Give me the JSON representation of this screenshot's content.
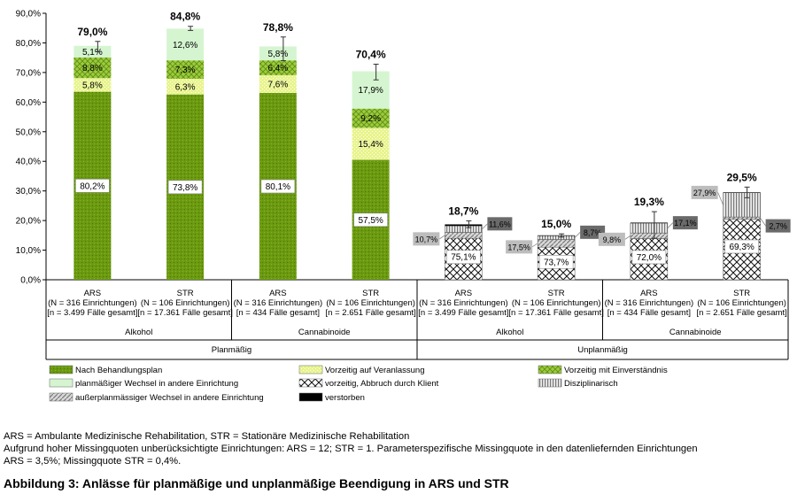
{
  "chart_data": {
    "type": "stacked_bar",
    "y_axis": {
      "min": 0,
      "max": 90,
      "tick_step": 10,
      "tick_labels": [
        "0,0%",
        "10,0%",
        "20,0%",
        "30,0%",
        "40,0%",
        "50,0%",
        "60,0%",
        "70,0%",
        "80,0%",
        "90,0%"
      ]
    },
    "categories": [
      {
        "id": "c1",
        "setting": "ARS",
        "n_inst": "(N = 316 Einrichtungen)",
        "n_cases": "[n = 3.499 Fälle gesamt]",
        "substance": "Alkohol",
        "type": "Planmäßig",
        "total": 79.0,
        "total_label": "79,0%"
      },
      {
        "id": "c2",
        "setting": "STR",
        "n_inst": "(N = 106 Einrichtungen)",
        "n_cases": "[n = 17.361 Fälle gesamt]",
        "substance": "Alkohol",
        "type": "Planmäßig",
        "total": 84.8,
        "total_label": "84,8%"
      },
      {
        "id": "c3",
        "setting": "ARS",
        "n_inst": "(N = 316 Einrichtungen)",
        "n_cases": "[n = 434 Fälle gesamt]",
        "substance": "Cannabinoide",
        "type": "Planmäßig",
        "total": 78.8,
        "total_label": "78,8%"
      },
      {
        "id": "c4",
        "setting": "STR",
        "n_inst": "(N = 106 Einrichtungen)",
        "n_cases": "[n = 2.651 Fälle gesamt]",
        "substance": "Cannabinoide",
        "type": "Planmäßig",
        "total": 70.4,
        "total_label": "70,4%"
      },
      {
        "id": "c5",
        "setting": "ARS",
        "n_inst": "(N = 316 Einrichtungen)",
        "n_cases": "[n = 3.499 Fälle gesamt]",
        "substance": "Alkohol",
        "type": "Unplanmäßig",
        "total": 18.7,
        "total_label": "18,7%"
      },
      {
        "id": "c6",
        "setting": "STR",
        "n_inst": "(N = 106 Einrichtungen)",
        "n_cases": "[n = 17.361 Fälle gesamt]",
        "substance": "Alkohol",
        "type": "Unplanmäßig",
        "total": 15.0,
        "total_label": "15,0%"
      },
      {
        "id": "c7",
        "setting": "ARS",
        "n_inst": "(N = 316 Einrichtungen)",
        "n_cases": "[n = 434 Fälle gesamt]",
        "substance": "Cannabinoide",
        "type": "Unplanmäßig",
        "total": 19.3,
        "total_label": "19,3%"
      },
      {
        "id": "c8",
        "setting": "STR",
        "n_inst": "(N = 106 Einrichtungen)",
        "n_cases": "[n = 2.651 Fälle gesamt]",
        "substance": "Cannabinoide",
        "type": "Unplanmäßig",
        "total": 29.5,
        "total_label": "29,5%"
      }
    ],
    "substance_groups": [
      {
        "label": "Alkohol",
        "from": 0,
        "to": 1
      },
      {
        "label": "Cannabinoide",
        "from": 2,
        "to": 3
      },
      {
        "label": "Alkohol",
        "from": 4,
        "to": 5
      },
      {
        "label": "Cannabinoide",
        "from": 6,
        "to": 7
      }
    ],
    "type_groups": [
      {
        "label": "Planmäßig",
        "from": 0,
        "to": 3
      },
      {
        "label": "Unplanmäßig",
        "from": 4,
        "to": 7
      }
    ],
    "segments": [
      [
        {
          "series": "plan",
          "value": 63.5,
          "label": "80,2%",
          "label_style": "box"
        },
        {
          "series": "veranlassung",
          "value": 4.6,
          "label": "5,8%"
        },
        {
          "series": "einverstaendnis",
          "value": 7.0,
          "label": "8,8%"
        },
        {
          "series": "wechsel",
          "value": 3.9,
          "label": "5,1%"
        }
      ],
      [
        {
          "series": "plan",
          "value": 62.6,
          "label": "73,8%",
          "label_style": "box"
        },
        {
          "series": "veranlassung",
          "value": 5.3,
          "label": "6,3%"
        },
        {
          "series": "einverstaendnis",
          "value": 6.2,
          "label": "7,3%"
        },
        {
          "series": "wechsel",
          "value": 10.7,
          "label": "12,6%"
        }
      ],
      [
        {
          "series": "plan",
          "value": 63.1,
          "label": "80,1%",
          "label_style": "box"
        },
        {
          "series": "veranlassung",
          "value": 6.0,
          "label": "7,6%"
        },
        {
          "series": "einverstaendnis",
          "value": 5.0,
          "label": "6,4%"
        },
        {
          "series": "wechsel",
          "value": 4.7,
          "label": "5,8%"
        }
      ],
      [
        {
          "series": "plan",
          "value": 40.5,
          "label": "57,5%",
          "label_style": "box"
        },
        {
          "series": "veranlassung",
          "value": 10.8,
          "label": "15,4%"
        },
        {
          "series": "einverstaendnis",
          "value": 6.5,
          "label": "9,2%"
        },
        {
          "series": "wechsel",
          "value": 12.6,
          "label": "17,9%"
        }
      ],
      [
        {
          "series": "abbruch",
          "value": 14.0,
          "label": "75,1%",
          "label_style": "box"
        },
        {
          "series": "ausserplan",
          "value": 2.0,
          "label": "10,7%",
          "label_style": "callout-left"
        },
        {
          "series": "disziplinarisch",
          "value": 2.2,
          "label": "11,6%",
          "label_style": "callout-right"
        },
        {
          "series": "verstorben",
          "value": 0.5,
          "label": ""
        }
      ],
      [
        {
          "series": "abbruch",
          "value": 11.0,
          "label": "73,7%",
          "label_style": "box"
        },
        {
          "series": "ausserplan",
          "value": 2.6,
          "label": "17,5%",
          "label_style": "callout-left"
        },
        {
          "series": "disziplinarisch",
          "value": 1.3,
          "label": "8,7%",
          "label_style": "callout-right"
        },
        {
          "series": "verstorben",
          "value": 0.1,
          "label": ""
        }
      ],
      [
        {
          "series": "abbruch",
          "value": 13.9,
          "label": "72,0%",
          "label_style": "box"
        },
        {
          "series": "ausserplan",
          "value": 1.9,
          "label": "9,8%",
          "label_style": "callout-left"
        },
        {
          "series": "disziplinarisch",
          "value": 3.3,
          "label": "17,1%",
          "label_style": "callout-right"
        },
        {
          "series": "verstorben",
          "value": 0.2,
          "label": ""
        }
      ],
      [
        {
          "series": "abbruch",
          "value": 20.4,
          "label": "69,3%",
          "label_style": "box"
        },
        {
          "series": "ausserplan",
          "value": 0.8,
          "label": "2,7%",
          "label_style": "callout-right"
        },
        {
          "series": "disziplinarisch",
          "value": 8.2,
          "label": "27,9%",
          "label_style": "callout-left"
        },
        {
          "series": "verstorben",
          "value": 0.1,
          "label": ""
        }
      ]
    ],
    "error_bars": [
      {
        "low": 77.0,
        "high": 80.5
      },
      {
        "low": 84.2,
        "high": 85.6
      },
      {
        "low": 74.0,
        "high": 82.0
      },
      {
        "low": 67.5,
        "high": 72.8
      },
      {
        "low": 17.6,
        "high": 19.9
      },
      {
        "low": 14.4,
        "high": 15.5
      },
      {
        "low": 14.0,
        "high": 23.0
      },
      {
        "low": 27.7,
        "high": 31.3
      }
    ],
    "legend": [
      {
        "series": "plan",
        "label": "Nach Behandlungsplan"
      },
      {
        "series": "veranlassung",
        "label": "Vorzeitig auf Veranlassung"
      },
      {
        "series": "einverstaendnis",
        "label": "Vorzeitig mit Einverständnis"
      },
      {
        "series": "wechsel",
        "label": "planmäßiger Wechsel in andere Einrichtung"
      },
      {
        "series": "abbruch",
        "label": "vorzeitig, Abbruch durch Klient"
      },
      {
        "series": "disziplinarisch",
        "label": "Disziplinarisch"
      },
      {
        "series": "ausserplan",
        "label": "außerplanmässiger Wechsel in andere Einrichtung"
      },
      {
        "series": "verstorben",
        "label": "verstorben"
      }
    ],
    "colors": {
      "plan": "#6b9a10",
      "veranlassung": "#e8f48c",
      "einverstaendnis": "#9ccc3c",
      "wechsel": "#d5f5d0",
      "abbruch": "#ffffff",
      "ausserplan": "#cfcfcf",
      "disziplinarisch": "#a8a8a8",
      "verstorben": "#000000",
      "callout_left": "#bdbdbd",
      "callout_right": "#6a6a6a"
    }
  },
  "footnotes": {
    "line1": "ARS = Ambulante Medizinische Rehabilitation, STR = Stationäre Medizinische Rehabilitation",
    "line2": "Aufgrund hoher Missingquoten unberücksichtigte Einrichtungen: ARS = 12; STR = 1. Parameterspezifische Missingquote in den datenliefernden Einrichtungen",
    "line3": "ARS = 3,5%; Missingquote STR = 0,4%."
  },
  "caption": "Abbildung 3: Anlässe für planmäßige und unplanmäßige Beendigung in ARS und STR"
}
